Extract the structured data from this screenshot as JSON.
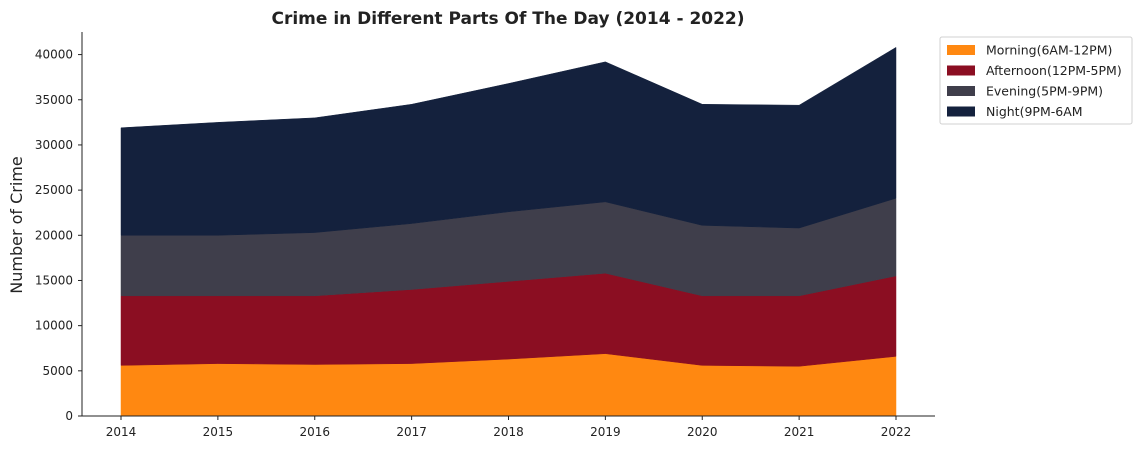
{
  "chart_data": {
    "type": "area",
    "stacked": true,
    "title": "Crime in Different Parts Of The Day (2014 - 2022)",
    "xlabel": "",
    "ylabel": "Number of Crime",
    "x": [
      "2014",
      "2015",
      "2016",
      "2017",
      "2018",
      "2019",
      "2020",
      "2021",
      "2022"
    ],
    "ylim": [
      0,
      42500
    ],
    "yticks": [
      0,
      5000,
      10000,
      15000,
      20000,
      25000,
      30000,
      35000,
      40000
    ],
    "grid": false,
    "legend_position": "outside-top-right",
    "series": [
      {
        "name": "Morning(6AM-12PM)",
        "color": "#ff8811",
        "values": [
          5600,
          5800,
          5700,
          5800,
          6300,
          6900,
          5600,
          5500,
          6600
        ]
      },
      {
        "name": "Afternoon(12PM-5PM)",
        "color": "#8b0e22",
        "values": [
          7700,
          7500,
          7600,
          8200,
          8600,
          8900,
          7700,
          7800,
          8900
        ]
      },
      {
        "name": "Evening(5PM-9PM)",
        "color": "#3f3e4b",
        "values": [
          6700,
          6700,
          7000,
          7300,
          7700,
          7900,
          7800,
          7500,
          8600
        ]
      },
      {
        "name": "Night(9PM-6AM",
        "color": "#14213d",
        "values": [
          11900,
          12500,
          12700,
          13200,
          14200,
          15500,
          13400,
          13600,
          16700
        ]
      }
    ]
  }
}
